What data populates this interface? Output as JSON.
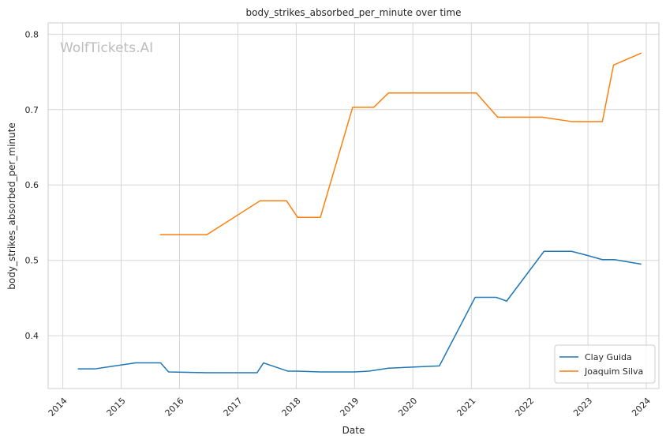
{
  "chart_data": {
    "type": "line",
    "title": "body_strikes_absorbed_per_minute over time",
    "xlabel": "Date",
    "ylabel": "body_strikes_absorbed_per_minute",
    "watermark": "WolfTickets.AI",
    "x_ticks": [
      "2014",
      "2015",
      "2016",
      "2017",
      "2018",
      "2019",
      "2020",
      "2021",
      "2022",
      "2023",
      "2024"
    ],
    "y_ticks": [
      "0.4",
      "0.5",
      "0.6",
      "0.7",
      "0.8"
    ],
    "xlim": [
      "2013-10-01",
      "2024-03-20"
    ],
    "ylim": [
      0.33,
      0.815
    ],
    "grid": true,
    "legend_position": "bottom-right",
    "series": [
      {
        "name": "Clay Guida",
        "color": "#1f77b4",
        "points": [
          [
            "2014-04-05",
            0.356
          ],
          [
            "2014-07-20",
            0.356
          ],
          [
            "2015-04-01",
            0.364
          ],
          [
            "2015-09-05",
            0.364
          ],
          [
            "2015-10-25",
            0.352
          ],
          [
            "2016-06-15",
            0.351
          ],
          [
            "2017-04-10",
            0.351
          ],
          [
            "2017-05-01",
            0.351
          ],
          [
            "2017-06-10",
            0.364
          ],
          [
            "2017-11-10",
            0.353
          ],
          [
            "2018-01-10",
            0.353
          ],
          [
            "2018-06-01",
            0.352
          ],
          [
            "2019-01-01",
            0.352
          ],
          [
            "2019-04-01",
            0.353
          ],
          [
            "2019-08-01",
            0.357
          ],
          [
            "2020-06-15",
            0.36
          ],
          [
            "2021-01-25",
            0.451
          ],
          [
            "2021-06-05",
            0.451
          ],
          [
            "2021-08-10",
            0.446
          ],
          [
            "2022-04-01",
            0.512
          ],
          [
            "2022-09-20",
            0.512
          ],
          [
            "2022-12-20",
            0.507
          ],
          [
            "2023-04-01",
            0.501
          ],
          [
            "2023-06-15",
            0.501
          ],
          [
            "2023-12-01",
            0.495
          ]
        ]
      },
      {
        "name": "Joaquim Silva",
        "color": "#ff7f0e",
        "points": [
          [
            "2015-09-01",
            0.534
          ],
          [
            "2016-06-20",
            0.534
          ],
          [
            "2017-05-20",
            0.579
          ],
          [
            "2017-11-01",
            0.579
          ],
          [
            "2018-01-10",
            0.557
          ],
          [
            "2018-06-01",
            0.557
          ],
          [
            "2018-12-20",
            0.703
          ],
          [
            "2019-05-01",
            0.703
          ],
          [
            "2019-08-01",
            0.722
          ],
          [
            "2021-02-01",
            0.722
          ],
          [
            "2021-06-15",
            0.69
          ],
          [
            "2022-03-20",
            0.69
          ],
          [
            "2022-09-25",
            0.684
          ],
          [
            "2023-04-01",
            0.684
          ],
          [
            "2023-06-10",
            0.759
          ],
          [
            "2023-12-01",
            0.775
          ]
        ]
      }
    ]
  }
}
